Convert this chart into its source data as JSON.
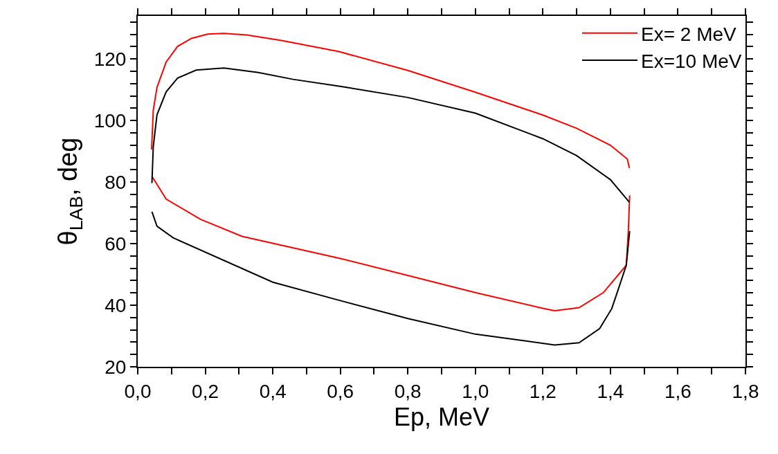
{
  "chart_data": {
    "type": "line",
    "xlabel": "Ep, MeV",
    "ylabel": "θ$_{LAB}$, deg",
    "xlim": [
      0,
      1.8
    ],
    "ylim": [
      20,
      134
    ],
    "xticks": [
      {
        "value": 0,
        "label": "0,0"
      },
      {
        "value": 0.1,
        "label": null
      },
      {
        "value": 0.2,
        "label": "0,2"
      },
      {
        "value": 0.3,
        "label": null
      },
      {
        "value": 0.4,
        "label": "0,4"
      },
      {
        "value": 0.5,
        "label": null
      },
      {
        "value": 0.6,
        "label": "0,6"
      },
      {
        "value": 0.7,
        "label": null
      },
      {
        "value": 0.8,
        "label": "0,8"
      },
      {
        "value": 0.9,
        "label": null
      },
      {
        "value": 1.0,
        "label": "1,0"
      },
      {
        "value": 1.1,
        "label": null
      },
      {
        "value": 1.2,
        "label": "1,2"
      },
      {
        "value": 1.3,
        "label": null
      },
      {
        "value": 1.4,
        "label": "1,4"
      },
      {
        "value": 1.5,
        "label": null
      },
      {
        "value": 1.6,
        "label": "1,6"
      },
      {
        "value": 1.7,
        "label": null
      },
      {
        "value": 1.8,
        "label": "1,8"
      }
    ],
    "yticks": [
      20,
      {
        "value": 24,
        "label": null
      },
      {
        "value": 28,
        "label": null
      },
      {
        "value": 32,
        "label": null
      },
      {
        "value": 36,
        "label": null
      },
      40,
      {
        "value": 44,
        "label": null
      },
      {
        "value": 48,
        "label": null
      },
      {
        "value": 52,
        "label": null
      },
      {
        "value": 56,
        "label": null
      },
      60,
      {
        "value": 64,
        "label": null
      },
      {
        "value": 68,
        "label": null
      },
      {
        "value": 72,
        "label": null
      },
      {
        "value": 76,
        "label": null
      },
      80,
      {
        "value": 84,
        "label": null
      },
      {
        "value": 88,
        "label": null
      },
      {
        "value": 92,
        "label": null
      },
      {
        "value": 96,
        "label": null
      },
      100,
      {
        "value": 104,
        "label": null
      },
      {
        "value": 108,
        "label": null
      },
      {
        "value": 112,
        "label": null
      },
      {
        "value": 116,
        "label": null
      },
      120,
      {
        "value": 124,
        "label": null
      },
      {
        "value": 128,
        "label": null
      },
      {
        "value": 132,
        "label": null
      }
    ],
    "grid": false,
    "legend": "top right",
    "line_style": "solid",
    "marker": "none",
    "series": [
      {
        "name": "Ex= 2 MeV",
        "color": "#ff0000",
        "x": [
          0.041,
          0.046,
          0.057,
          0.084,
          0.118,
          0.159,
          0.207,
          0.255,
          0.323,
          0.426,
          0.596,
          0.8,
          1.0,
          1.2,
          1.3,
          1.4,
          1.45,
          1.456,
          null,
          0.042,
          0.084,
          0.186,
          0.309,
          0.6,
          0.8,
          1.0,
          1.2,
          1.235,
          1.307,
          1.379,
          1.447,
          1.453,
          1.457
        ],
        "values": [
          90.6,
          103.4,
          110.8,
          119,
          124.1,
          126.7,
          128.1,
          128.3,
          127.8,
          126,
          122.4,
          116.3,
          109.2,
          101.8,
          97.5,
          92,
          87.5,
          84.6,
          null,
          81.9,
          74.5,
          67.9,
          62.4,
          55.2,
          49.7,
          44.1,
          39.0,
          38.2,
          39.2,
          44.1,
          53,
          64,
          75.7
        ]
      },
      {
        "name": "Ex=10 MeV",
        "color": "#000000",
        "x": [
          0.042,
          0.046,
          0.057,
          0.084,
          0.118,
          0.173,
          0.255,
          0.357,
          0.46,
          0.596,
          0.8,
          1.0,
          1.2,
          1.3,
          1.4,
          1.456,
          null,
          0.042,
          0.057,
          0.105,
          0.4,
          0.6,
          0.8,
          1.0,
          1.235,
          1.307,
          1.368,
          1.404,
          1.42,
          1.447,
          1.457
        ],
        "values": [
          79.7,
          91.5,
          101.9,
          109.3,
          113.8,
          116.4,
          117.1,
          115.6,
          113.4,
          111.2,
          107.5,
          102.4,
          94.1,
          88.6,
          80.8,
          73.5,
          null,
          70.4,
          65.7,
          61.9,
          47.5,
          41.5,
          35.7,
          30.6,
          27.1,
          27.8,
          32.4,
          38.9,
          44.1,
          53,
          64.1
        ]
      }
    ]
  }
}
